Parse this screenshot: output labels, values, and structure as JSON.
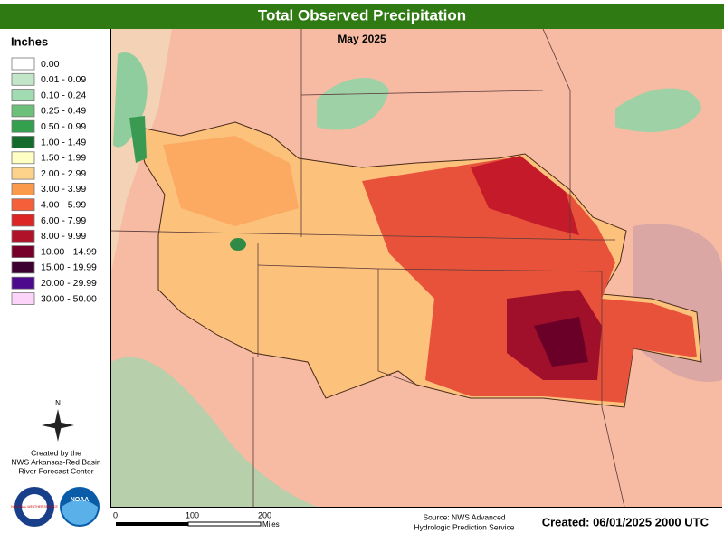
{
  "header": {
    "title": "Total Observed Precipitation",
    "subtitle": "May 2025"
  },
  "legend": {
    "title": "Inches",
    "items": [
      {
        "label": "0.00",
        "color": "#ffffff"
      },
      {
        "label": "0.01 - 0.09",
        "color": "#c2e6c8"
      },
      {
        "label": "0.10 - 0.24",
        "color": "#a0dbb2"
      },
      {
        "label": "0.25 - 0.49",
        "color": "#6cc07a"
      },
      {
        "label": "0.50 - 0.99",
        "color": "#34a04e"
      },
      {
        "label": "1.00 - 1.49",
        "color": "#146b2c"
      },
      {
        "label": "1.50 - 1.99",
        "color": "#ffffc4"
      },
      {
        "label": "2.00 - 2.99",
        "color": "#fdd38c"
      },
      {
        "label": "3.00 - 3.99",
        "color": "#fc9a4c"
      },
      {
        "label": "4.00 - 5.99",
        "color": "#f55f3a"
      },
      {
        "label": "6.00 - 7.99",
        "color": "#dc2626"
      },
      {
        "label": "8.00 - 9.99",
        "color": "#b0122a"
      },
      {
        "label": "10.00 - 14.99",
        "color": "#76002a"
      },
      {
        "label": "15.00 - 19.99",
        "color": "#3c0030"
      },
      {
        "label": "20.00 - 29.99",
        "color": "#4e0a8c"
      },
      {
        "label": "30.00 - 50.00",
        "color": "#fcd4fa"
      }
    ]
  },
  "compass": "N",
  "credit": [
    "Created by the",
    "NWS Arkansas-Red Basin",
    "River Forecast Center"
  ],
  "logos": {
    "nws": "NATIONAL WEATHER SERVICE",
    "noaa": "NOAA"
  },
  "scale": {
    "ticks": [
      "0",
      "100",
      "200"
    ],
    "unit": "Miles"
  },
  "source": [
    "Source: NWS Advanced",
    "Hydrologic Prediction Service"
  ],
  "created": "Created: 06/01/2025 2000 UTC"
}
